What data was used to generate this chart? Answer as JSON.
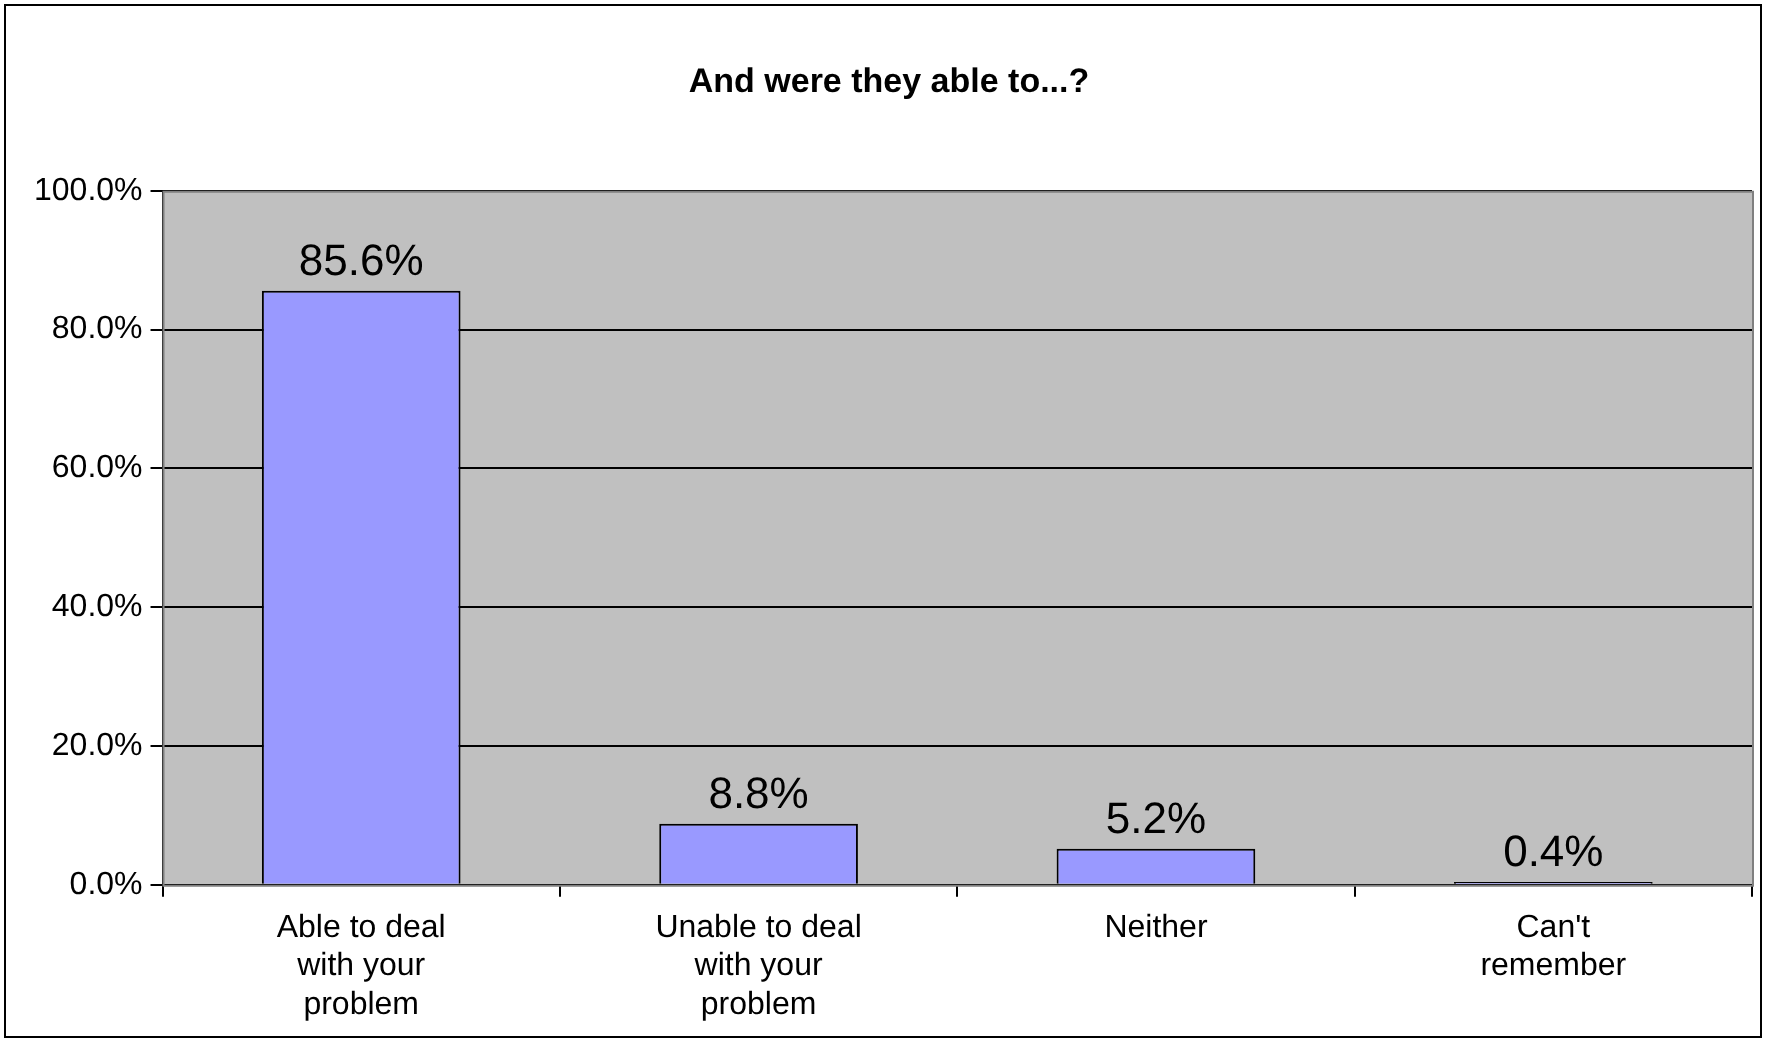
{
  "chart_data": {
    "type": "bar",
    "title": "And were they able to...?",
    "categories": [
      "Able to deal with your problem",
      "Unable to deal with your problem",
      "Neither",
      "Can't remember"
    ],
    "values": [
      85.6,
      8.8,
      5.2,
      0.4
    ],
    "value_labels": [
      "85.6%",
      "8.8%",
      "5.2%",
      "0.4%"
    ],
    "color": "#9999ff",
    "ylim": [
      0,
      100
    ],
    "yticks": [
      {
        "value": 0,
        "label": "0.0%"
      },
      {
        "value": 20,
        "label": "20.0%"
      },
      {
        "value": 40,
        "label": "40.0%"
      },
      {
        "value": 60,
        "label": "60.0%"
      },
      {
        "value": 80,
        "label": "80.0%"
      },
      {
        "value": 100,
        "label": "100.0%"
      }
    ],
    "grid": "y",
    "legend": false
  }
}
